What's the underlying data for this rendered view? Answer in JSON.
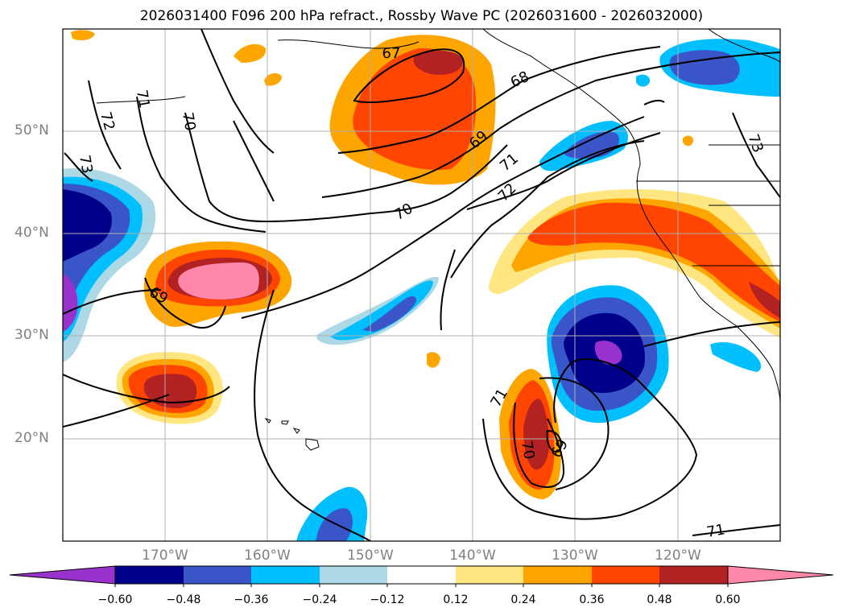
{
  "title": "2026031400 F096 200 hPa refract., Rossby Wave PC (2026031600 - 2026032000)",
  "lat_labels": [
    "50°N",
    "40°N",
    "30°N",
    "20°N"
  ],
  "lon_labels": [
    "170°W",
    "160°W",
    "150°W",
    "140°W",
    "130°W",
    "120°W"
  ],
  "contour_labels": [
    "67",
    "68",
    "69",
    "69",
    "69",
    "70",
    "70",
    "70",
    "71",
    "71",
    "71",
    "71",
    "72",
    "72",
    "73",
    "73"
  ],
  "colorbar": {
    "ticks": [
      "−0.60",
      "−0.48",
      "−0.36",
      "−0.24",
      "−0.12",
      "0.12",
      "0.24",
      "0.36",
      "0.48",
      "0.60"
    ],
    "colors": [
      "#9932cc",
      "#00008b",
      "#3a55c8",
      "#00bfff",
      "#add8e6",
      "#ffffff",
      "#ffe680",
      "#ffa500",
      "#ff4500",
      "#b22222",
      "#ff88aa"
    ]
  }
}
